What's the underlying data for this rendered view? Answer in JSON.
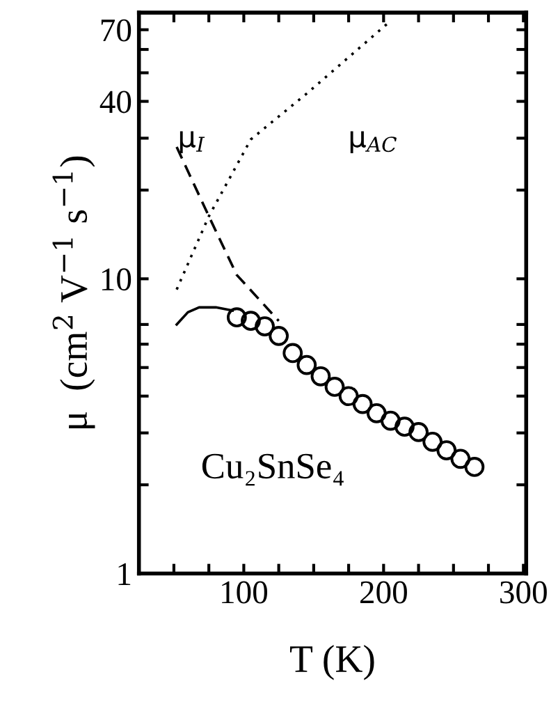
{
  "chart_data": {
    "type": "line",
    "xlabel": "T (K)",
    "ylabel": "μ  (cm$^{2}$ V$^{−1}$ s$^{−1}$)",
    "log": "y",
    "xlim": [
      25,
      302
    ],
    "ylim": [
      1,
      80
    ],
    "xticks": [
      {
        "value": 50,
        "label": null
      },
      {
        "value": 75,
        "label": null
      },
      100,
      {
        "value": 125,
        "label": null
      },
      {
        "value": 150,
        "label": null
      },
      {
        "value": 175,
        "label": null
      },
      200,
      {
        "value": 225,
        "label": null
      },
      {
        "value": 250,
        "label": null
      },
      {
        "value": 275,
        "label": null
      },
      300
    ],
    "yticks": [
      1,
      {
        "value": 2,
        "label": null
      },
      {
        "value": 3,
        "label": null
      },
      {
        "value": 4,
        "label": null
      },
      {
        "value": 5,
        "label": null
      },
      {
        "value": 6,
        "label": null
      },
      {
        "value": 7,
        "label": null
      },
      10,
      {
        "value": 20,
        "label": null
      },
      {
        "value": 30,
        "label": null
      },
      40,
      {
        "value": 50,
        "label": null
      },
      {
        "value": 60,
        "label": null
      },
      70
    ],
    "grid": false,
    "legend": false,
    "series": [
      {
        "name": "μ$_{I}$",
        "line_style": "dashed",
        "marker": "none",
        "color": "#000000",
        "x": [
          52,
          75,
          95,
          125
        ],
        "values": [
          28,
          16.3,
          10.3,
          7.2
        ]
      },
      {
        "name": "μ$_{AC}$",
        "line_style": "dotted",
        "marker": "none",
        "color": "#000000",
        "x": [
          52,
          75,
          105,
          145,
          205
        ],
        "values": [
          9.2,
          16.3,
          29.7,
          42.5,
          75
        ]
      },
      {
        "line_style": "solid",
        "marker": "none",
        "color": "#000000",
        "x": [
          52,
          60,
          68,
          80,
          92
        ],
        "values": [
          7.0,
          7.7,
          8.0,
          8.0,
          7.8
        ]
      },
      {
        "type": "scatter",
        "marker": "circle",
        "color": "#000000",
        "x": [
          95,
          105,
          115,
          125,
          135,
          145,
          155,
          165,
          175,
          185,
          195,
          205,
          215,
          225,
          235,
          245,
          255,
          265
        ],
        "values": [
          7.4,
          7.2,
          6.9,
          6.4,
          5.6,
          5.1,
          4.67,
          4.3,
          4.0,
          3.76,
          3.5,
          3.3,
          3.15,
          3.02,
          2.8,
          2.62,
          2.45,
          2.3
        ]
      }
    ],
    "annotations": [
      "Cu₂SnSe₄"
    ]
  }
}
